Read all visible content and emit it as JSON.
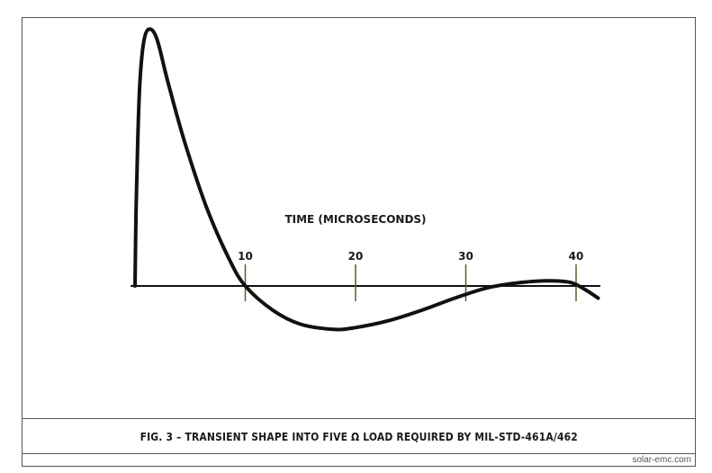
{
  "chart_data": {
    "type": "line",
    "xlabel": "TIME (MICROSECONDS)",
    "x_ticks": [
      10,
      20,
      30,
      40
    ],
    "xlim": [
      0,
      42.5
    ],
    "ylim": [
      -0.26,
      1.55
    ],
    "grid": false,
    "series": [
      {
        "x": [
          0,
          0.1,
          0.25,
          0.45,
          0.8,
          1.3,
          2.0,
          3.0,
          4.5,
          6.5,
          8.5,
          10.0,
          12.5,
          15.0,
          18.0,
          20.0,
          23.0,
          26.0,
          29.0,
          32.0,
          35.0,
          37.5,
          39.5,
          40.8,
          42.0
        ],
        "y": [
          0.0,
          0.45,
          0.85,
          1.18,
          1.41,
          1.48,
          1.42,
          1.17,
          0.83,
          0.45,
          0.16,
          0.0,
          -0.14,
          -0.22,
          -0.25,
          -0.24,
          -0.2,
          -0.14,
          -0.07,
          -0.01,
          0.02,
          0.03,
          0.02,
          -0.02,
          -0.07
        ]
      }
    ],
    "colors": {
      "line": "#111111",
      "axis": "#111111",
      "text": "#1a1a1a",
      "border": "#555555"
    }
  },
  "caption": "FIG. 3 – TRANSIENT SHAPE INTO FIVE Ω LOAD REQUIRED BY MIL-STD-461A/462",
  "credit": "solar-emc.com"
}
